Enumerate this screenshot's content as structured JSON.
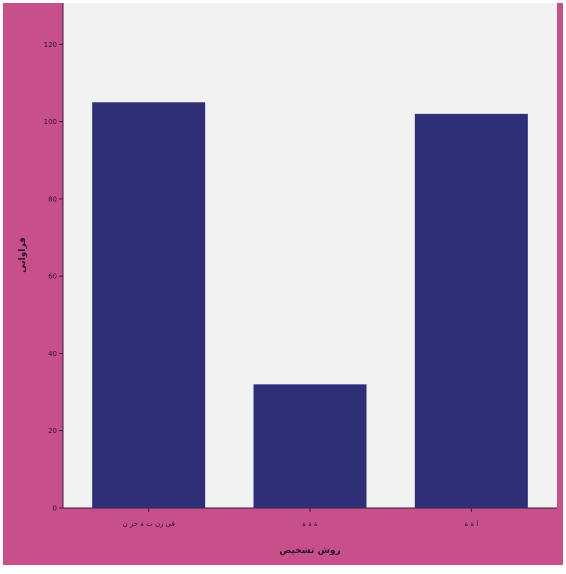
{
  "chart_data": {
    "type": "bar",
    "categories": [
      "فى زن ت ة خر ن",
      "ة ة ة",
      "ا ة ة"
    ],
    "values": [
      105,
      32,
      102
    ],
    "xlabel": "روش تشخيص",
    "ylabel": "فراوانی",
    "ylim": [
      0,
      125
    ],
    "yticks": [
      "0",
      "20",
      "40",
      "60",
      "80",
      "100",
      "120"
    ],
    "grid": false,
    "colors": {
      "bar": "#2f2f78",
      "plot_background": "#f2f2f2",
      "frame_background": "#c8508a"
    }
  }
}
